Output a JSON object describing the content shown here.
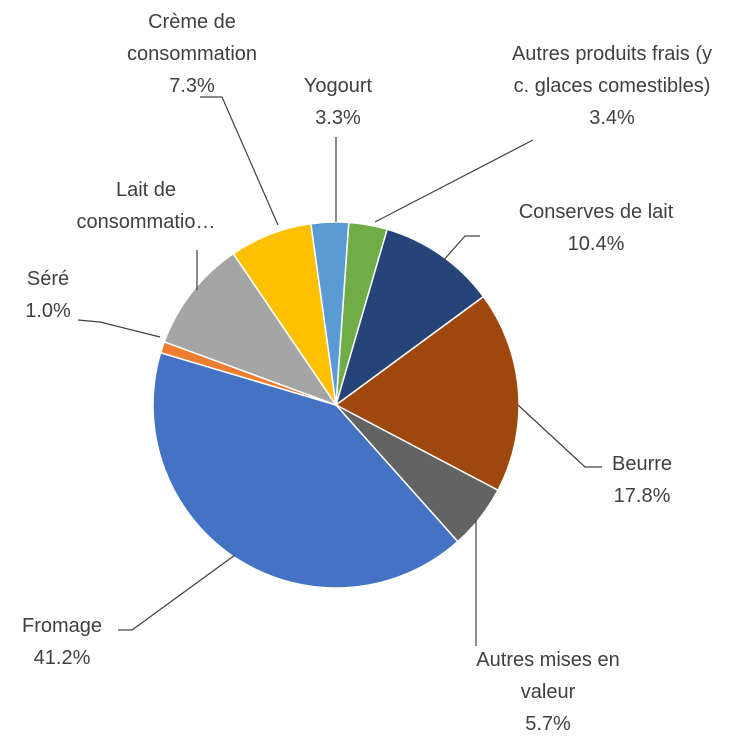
{
  "chart_data": {
    "type": "pie",
    "categories": [
      "Autres produits frais (y c. glaces comestibles)",
      "Conserves de lait",
      "Beurre",
      "Autres mises en valeur",
      "Fromage",
      "Séré",
      "Lait de consommatio…",
      "Crème de consommation",
      "Yogourt"
    ],
    "values": [
      3.4,
      10.4,
      17.8,
      5.7,
      41.2,
      1.0,
      9.9,
      7.3,
      3.3
    ],
    "value_labels": [
      "3.4%",
      "10.4%",
      "17.8%",
      "5.7%",
      "41.2%",
      "1.0%",
      null,
      "7.3%",
      "3.3%"
    ],
    "colors": [
      "#70ad47",
      "#264478",
      "#9e480e",
      "#636363",
      "#4472c4",
      "#ed7d31",
      "#a5a5a5",
      "#ffc000",
      "#5b9bd5"
    ]
  }
}
